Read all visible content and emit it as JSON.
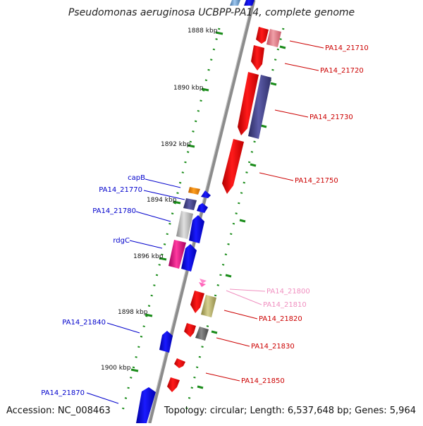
{
  "title": "Pseudomonas aeruginosa UCBPP-PA14, complete genome",
  "footer": {
    "accession": "Accession: NC_008463",
    "summary": "Topology: circular; Length: 6,537,648 bp; Genes: 5,964"
  },
  "ruler": [
    {
      "label": "1888 kbp"
    },
    {
      "label": "1890 kbp"
    },
    {
      "label": "1892 kbp"
    },
    {
      "label": "1894 kbp"
    },
    {
      "label": "1896 kbp"
    },
    {
      "label": "1898 kbp"
    },
    {
      "label": "1900 kbp"
    }
  ],
  "gene_labels": [
    {
      "text": "capB",
      "color": "#0000cc"
    },
    {
      "text": "PA14_21770",
      "color": "#0000cc"
    },
    {
      "text": "PA14_21780",
      "color": "#0000cc"
    },
    {
      "text": "rdgC",
      "color": "#0000cc"
    },
    {
      "text": "PA14_21840",
      "color": "#0000cc"
    },
    {
      "text": "PA14_21870",
      "color": "#0000cc"
    },
    {
      "text": "PA14_21710",
      "color": "#cc0000"
    },
    {
      "text": "PA14_21720",
      "color": "#cc0000"
    },
    {
      "text": "PA14_21730",
      "color": "#cc0000"
    },
    {
      "text": "PA14_21750",
      "color": "#cc0000"
    },
    {
      "text": "PA14_21800",
      "color": "#f090c0"
    },
    {
      "text": "PA14_21810",
      "color": "#f090c0"
    },
    {
      "text": "PA14_21820",
      "color": "#cc0000"
    },
    {
      "text": "PA14_21830",
      "color": "#cc0000"
    },
    {
      "text": "PA14_21850",
      "color": "#cc0000"
    }
  ],
  "colors": {
    "backbone": "#8c8c8c",
    "dotted_track": "#1a8c1a",
    "forward_gene": "#0000ff",
    "reverse_gene": "#ff0000",
    "pseudo_gene": "#ff88cc"
  }
}
